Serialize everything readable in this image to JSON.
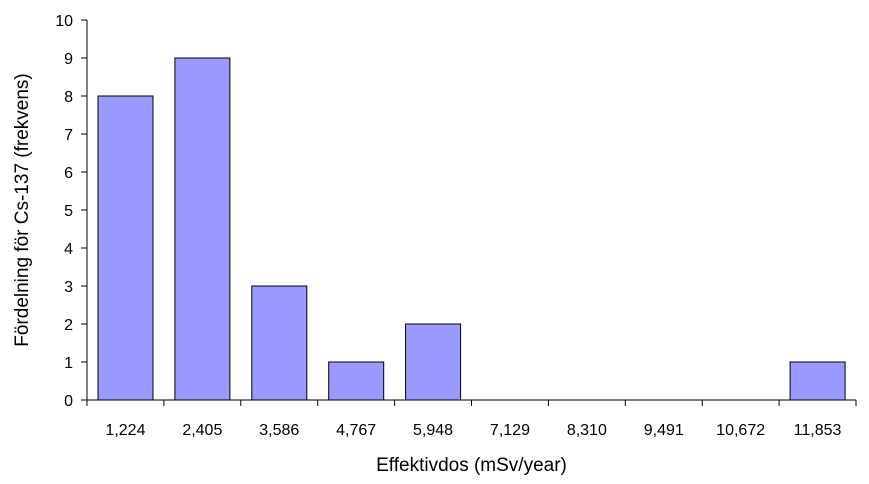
{
  "chart_data": {
    "type": "bar",
    "title": "",
    "xlabel": "Effektivdos (mSv/year)",
    "ylabel": "Fördelning för Cs-137 (frekvens)",
    "categories": [
      "1,224",
      "2,405",
      "3,586",
      "4,767",
      "5,948",
      "7,129",
      "8,310",
      "9,491",
      "10,672",
      "11,853"
    ],
    "values": [
      8,
      9,
      3,
      1,
      2,
      0,
      0,
      0,
      0,
      1
    ],
    "ylim": [
      0,
      10
    ],
    "yticks": [
      "0",
      "1",
      "2",
      "3",
      "4",
      "5",
      "6",
      "7",
      "8",
      "9",
      "10"
    ],
    "grid": false,
    "legend": "none",
    "colors": {
      "bar_fill": "#9999ff",
      "bar_stroke": "#000000",
      "axis": "#000000"
    }
  }
}
